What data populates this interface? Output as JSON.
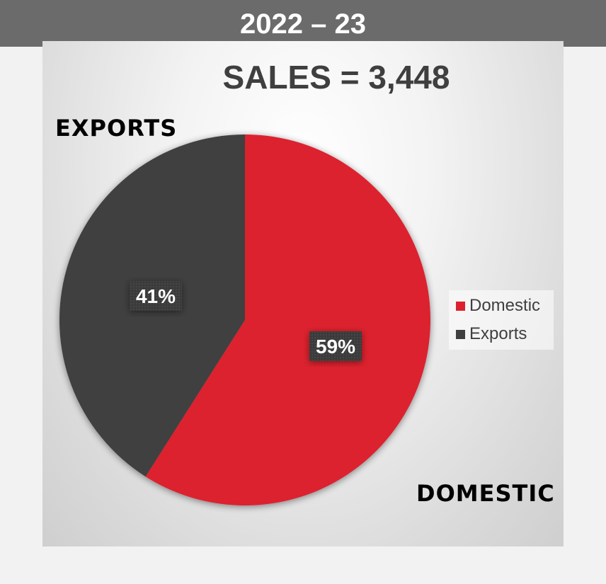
{
  "header": {
    "year_label": "2022 – 23"
  },
  "chart_data": {
    "type": "pie",
    "title": "SALES = 3,448",
    "categories": [
      "Domestic",
      "Exports"
    ],
    "values": [
      59,
      41
    ],
    "data_labels": [
      "59%",
      "41%"
    ],
    "colors": [
      "#dc202e",
      "#404040"
    ],
    "legend_position": "right",
    "callouts": {
      "exports": "EXPORTS",
      "domestic": "DOMESTIC"
    }
  }
}
